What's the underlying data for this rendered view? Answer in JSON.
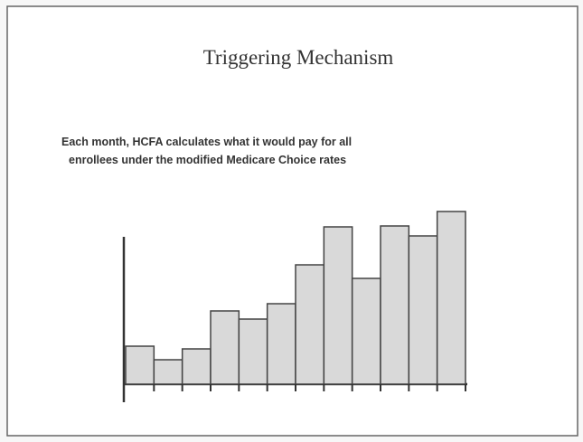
{
  "chart_data": {
    "type": "bar",
    "title": "Triggering Mechanism",
    "subtitle": [
      "Each month, HCFA calculates what it would pay for all",
      "enrollees under the modified Medicare Choice rates"
    ],
    "values": [
      42,
      27,
      39,
      81,
      72,
      89,
      132,
      174,
      117,
      175,
      164,
      191
    ],
    "color": "#d9d9d9",
    "ylim": [
      0,
      200
    ]
  }
}
